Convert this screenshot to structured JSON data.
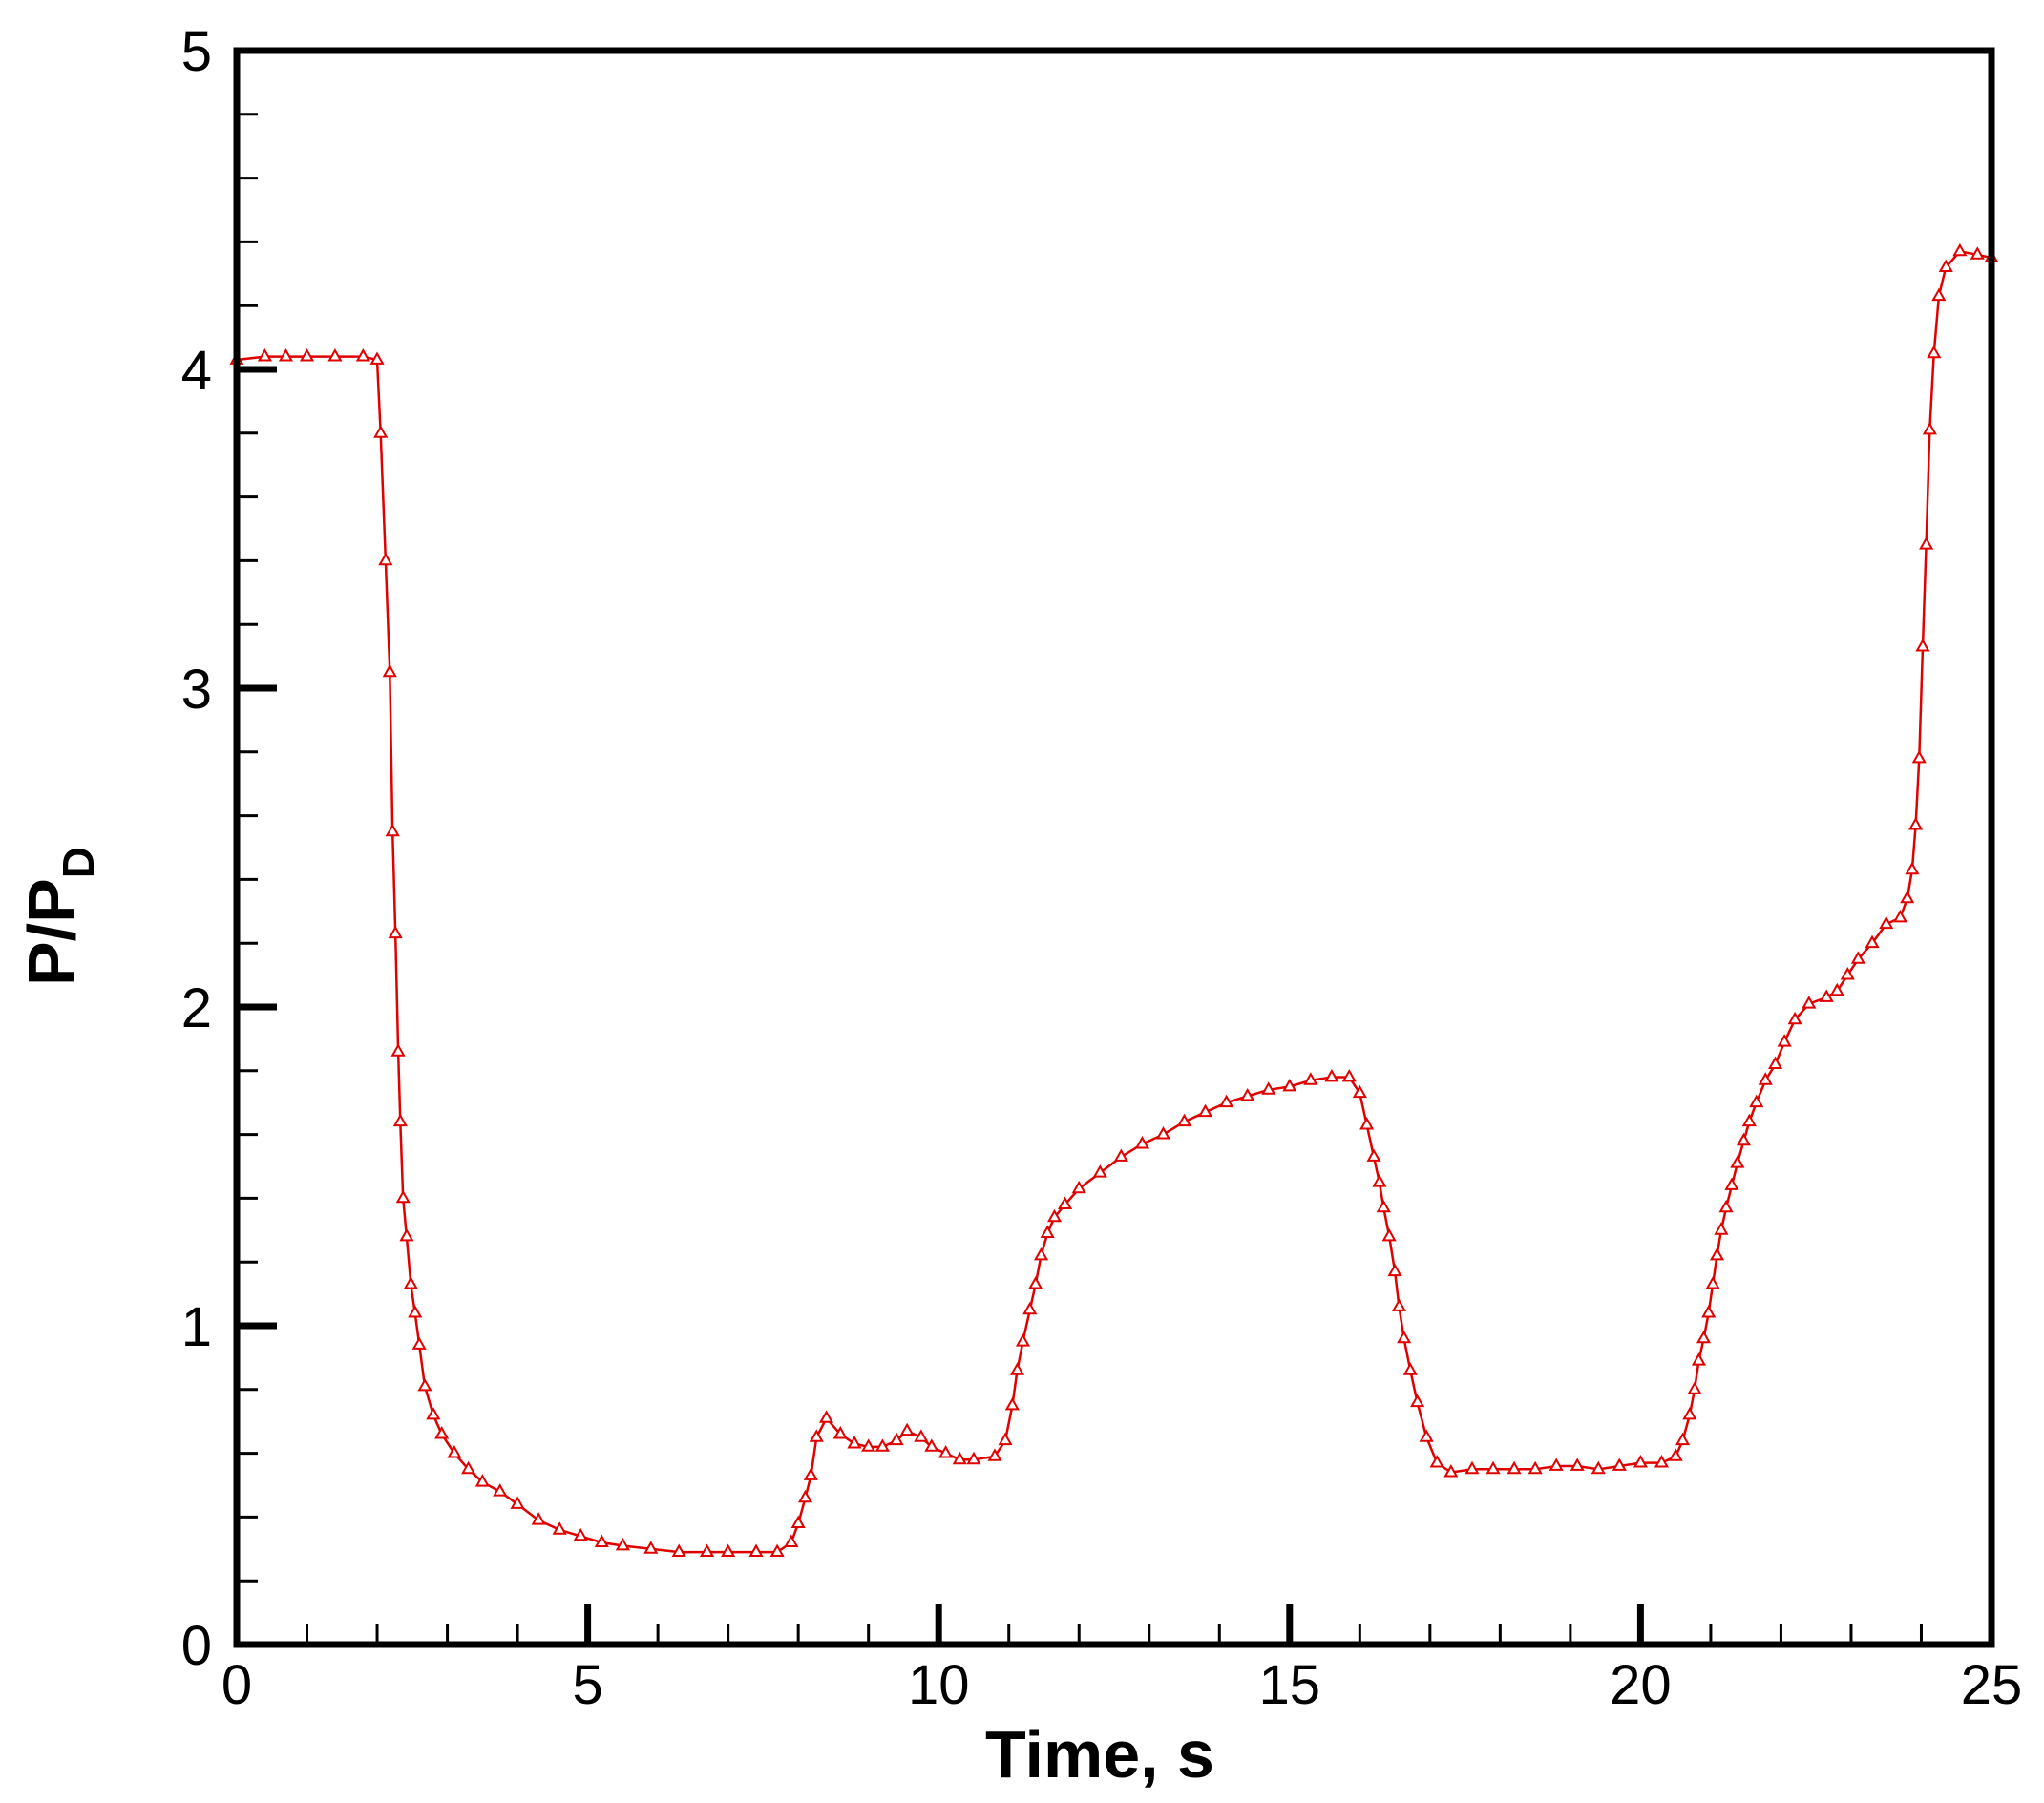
{
  "colors": {
    "series": "#e00000",
    "axis": "#000000",
    "background": "#ffffff"
  },
  "chart_data": {
    "type": "line",
    "title": "",
    "xlabel": "Time, s",
    "ylabel_main": "P/P",
    "ylabel_sub": "D",
    "xlim": [
      0,
      25
    ],
    "ylim": [
      0,
      5
    ],
    "x_major_ticks": [
      0,
      5,
      10,
      15,
      20,
      25
    ],
    "x_tick_labels": [
      "0",
      "5",
      "10",
      "15",
      "20",
      "25"
    ],
    "x_minor_step": 1,
    "y_major_ticks": [
      0,
      1,
      2,
      3,
      4,
      5
    ],
    "y_tick_labels": [
      "0",
      "1",
      "2",
      "3",
      "4",
      "5"
    ],
    "y_minor_step": 0.2,
    "grid": false,
    "legend": "none",
    "series": [
      {
        "marker": "triangle-open",
        "points": [
          [
            0.0,
            4.03
          ],
          [
            0.4,
            4.04
          ],
          [
            0.7,
            4.04
          ],
          [
            1.0,
            4.04
          ],
          [
            1.4,
            4.04
          ],
          [
            1.8,
            4.04
          ],
          [
            2.0,
            4.03
          ],
          [
            2.05,
            3.8
          ],
          [
            2.12,
            3.4
          ],
          [
            2.18,
            3.05
          ],
          [
            2.22,
            2.55
          ],
          [
            2.26,
            2.23
          ],
          [
            2.3,
            1.86
          ],
          [
            2.33,
            1.64
          ],
          [
            2.37,
            1.4
          ],
          [
            2.42,
            1.28
          ],
          [
            2.48,
            1.13
          ],
          [
            2.54,
            1.04
          ],
          [
            2.6,
            0.94
          ],
          [
            2.68,
            0.81
          ],
          [
            2.8,
            0.72
          ],
          [
            2.92,
            0.66
          ],
          [
            3.1,
            0.6
          ],
          [
            3.3,
            0.55
          ],
          [
            3.5,
            0.51
          ],
          [
            3.75,
            0.48
          ],
          [
            4.0,
            0.44
          ],
          [
            4.3,
            0.39
          ],
          [
            4.6,
            0.36
          ],
          [
            4.9,
            0.34
          ],
          [
            5.2,
            0.32
          ],
          [
            5.5,
            0.31
          ],
          [
            5.9,
            0.3
          ],
          [
            6.3,
            0.29
          ],
          [
            6.7,
            0.29
          ],
          [
            7.0,
            0.29
          ],
          [
            7.4,
            0.29
          ],
          [
            7.7,
            0.29
          ],
          [
            7.9,
            0.32
          ],
          [
            8.0,
            0.38
          ],
          [
            8.1,
            0.46
          ],
          [
            8.18,
            0.53
          ],
          [
            8.26,
            0.65
          ],
          [
            8.4,
            0.71
          ],
          [
            8.6,
            0.66
          ],
          [
            8.8,
            0.63
          ],
          [
            9.0,
            0.62
          ],
          [
            9.2,
            0.62
          ],
          [
            9.4,
            0.64
          ],
          [
            9.55,
            0.67
          ],
          [
            9.75,
            0.65
          ],
          [
            9.9,
            0.62
          ],
          [
            10.1,
            0.6
          ],
          [
            10.3,
            0.58
          ],
          [
            10.5,
            0.58
          ],
          [
            10.8,
            0.59
          ],
          [
            10.95,
            0.64
          ],
          [
            11.05,
            0.75
          ],
          [
            11.12,
            0.86
          ],
          [
            11.2,
            0.95
          ],
          [
            11.3,
            1.05
          ],
          [
            11.38,
            1.13
          ],
          [
            11.46,
            1.22
          ],
          [
            11.55,
            1.29
          ],
          [
            11.65,
            1.34
          ],
          [
            11.8,
            1.38
          ],
          [
            12.0,
            1.43
          ],
          [
            12.3,
            1.48
          ],
          [
            12.6,
            1.53
          ],
          [
            12.9,
            1.57
          ],
          [
            13.2,
            1.6
          ],
          [
            13.5,
            1.64
          ],
          [
            13.8,
            1.67
          ],
          [
            14.1,
            1.7
          ],
          [
            14.4,
            1.72
          ],
          [
            14.7,
            1.74
          ],
          [
            15.0,
            1.75
          ],
          [
            15.3,
            1.77
          ],
          [
            15.6,
            1.78
          ],
          [
            15.85,
            1.78
          ],
          [
            16.0,
            1.73
          ],
          [
            16.1,
            1.63
          ],
          [
            16.2,
            1.53
          ],
          [
            16.28,
            1.45
          ],
          [
            16.34,
            1.37
          ],
          [
            16.42,
            1.28
          ],
          [
            16.5,
            1.17
          ],
          [
            16.56,
            1.06
          ],
          [
            16.63,
            0.96
          ],
          [
            16.72,
            0.86
          ],
          [
            16.82,
            0.76
          ],
          [
            16.95,
            0.65
          ],
          [
            17.1,
            0.57
          ],
          [
            17.3,
            0.54
          ],
          [
            17.6,
            0.55
          ],
          [
            17.9,
            0.55
          ],
          [
            18.2,
            0.55
          ],
          [
            18.5,
            0.55
          ],
          [
            18.8,
            0.56
          ],
          [
            19.1,
            0.56
          ],
          [
            19.4,
            0.55
          ],
          [
            19.7,
            0.56
          ],
          [
            20.0,
            0.57
          ],
          [
            20.3,
            0.57
          ],
          [
            20.5,
            0.59
          ],
          [
            20.6,
            0.64
          ],
          [
            20.7,
            0.72
          ],
          [
            20.77,
            0.8
          ],
          [
            20.83,
            0.89
          ],
          [
            20.9,
            0.96
          ],
          [
            20.97,
            1.04
          ],
          [
            21.03,
            1.13
          ],
          [
            21.09,
            1.22
          ],
          [
            21.15,
            1.3
          ],
          [
            21.22,
            1.37
          ],
          [
            21.3,
            1.44
          ],
          [
            21.38,
            1.51
          ],
          [
            21.47,
            1.58
          ],
          [
            21.55,
            1.64
          ],
          [
            21.65,
            1.7
          ],
          [
            21.78,
            1.77
          ],
          [
            21.92,
            1.82
          ],
          [
            22.05,
            1.89
          ],
          [
            22.2,
            1.96
          ],
          [
            22.4,
            2.01
          ],
          [
            22.65,
            2.03
          ],
          [
            22.8,
            2.05
          ],
          [
            22.95,
            2.1
          ],
          [
            23.1,
            2.15
          ],
          [
            23.3,
            2.2
          ],
          [
            23.5,
            2.26
          ],
          [
            23.7,
            2.28
          ],
          [
            23.8,
            2.34
          ],
          [
            23.87,
            2.43
          ],
          [
            23.92,
            2.57
          ],
          [
            23.97,
            2.78
          ],
          [
            24.02,
            3.13
          ],
          [
            24.07,
            3.45
          ],
          [
            24.12,
            3.81
          ],
          [
            24.18,
            4.05
          ],
          [
            24.25,
            4.23
          ],
          [
            24.35,
            4.32
          ],
          [
            24.55,
            4.37
          ],
          [
            24.8,
            4.36
          ],
          [
            25.0,
            4.35
          ]
        ]
      }
    ]
  }
}
